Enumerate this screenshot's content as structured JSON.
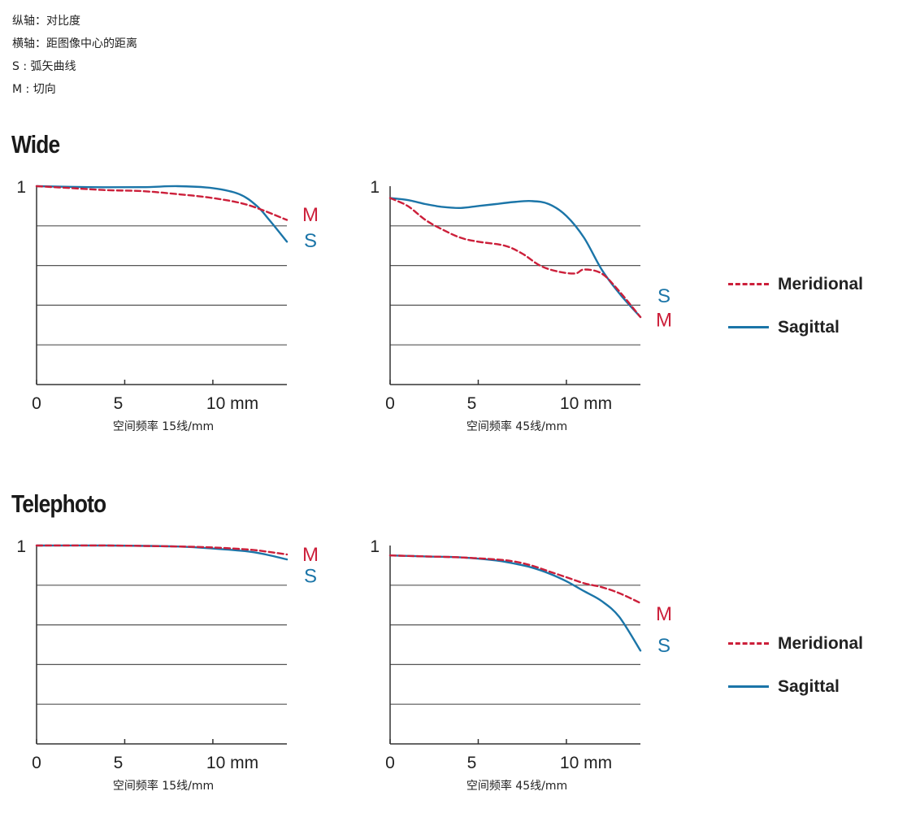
{
  "notes": [
    "纵轴：对比度",
    "横轴：距图像中心的距离",
    "S : 弧矢曲线",
    "M : 切向"
  ],
  "sections": [
    {
      "title": "Wide",
      "charts": [
        {
          "caption": "空间频率 15线/mm",
          "end_labels": [
            {
              "text": "M",
              "color": "#cc1f3a",
              "y": 0.86
            },
            {
              "text": "S",
              "color": "#1b75a8",
              "y": 0.73
            }
          ],
          "series": [
            {
              "key": "M",
              "color": "#cc1f3a",
              "dashed": true,
              "x": [
                0,
                2,
                4,
                6,
                8,
                10,
                12,
                14.2
              ],
              "y": [
                1.0,
                0.99,
                0.98,
                0.975,
                0.96,
                0.94,
                0.905,
                0.83
              ]
            },
            {
              "key": "S",
              "color": "#1b75a8",
              "dashed": false,
              "x": [
                0,
                3,
                6,
                8,
                10,
                11.5,
                12.5,
                13.2,
                14.2
              ],
              "y": [
                1.0,
                0.995,
                0.995,
                1.0,
                0.99,
                0.96,
                0.9,
                0.83,
                0.72
              ]
            }
          ]
        },
        {
          "caption": "空间频率 45线/mm",
          "end_labels": [
            {
              "text": "S",
              "color": "#1b75a8",
              "y": 0.45
            },
            {
              "text": "M",
              "color": "#cc1f3a",
              "y": 0.33
            }
          ],
          "series": [
            {
              "key": "M",
              "color": "#cc1f3a",
              "dashed": true,
              "x": [
                0,
                1,
                2,
                3,
                4,
                5,
                6.5,
                7.5,
                8.5,
                9.5,
                10.5,
                11,
                12,
                13,
                14.2
              ],
              "y": [
                0.94,
                0.9,
                0.83,
                0.78,
                0.74,
                0.72,
                0.7,
                0.66,
                0.6,
                0.57,
                0.56,
                0.58,
                0.56,
                0.47,
                0.34
              ]
            },
            {
              "key": "S",
              "color": "#1b75a8",
              "dashed": false,
              "x": [
                0,
                1,
                2,
                3,
                4,
                5,
                6,
                7,
                8,
                9,
                10,
                11,
                12,
                13,
                14.2
              ],
              "y": [
                0.94,
                0.93,
                0.91,
                0.895,
                0.89,
                0.9,
                0.91,
                0.92,
                0.925,
                0.91,
                0.85,
                0.74,
                0.58,
                0.46,
                0.34
              ]
            }
          ]
        }
      ]
    },
    {
      "title": "Telephoto",
      "charts": [
        {
          "caption": "空间频率 15线/mm",
          "end_labels": [
            {
              "text": "M",
              "color": "#cc1f3a",
              "y": 0.96
            },
            {
              "text": "S",
              "color": "#1b75a8",
              "y": 0.85
            }
          ],
          "series": [
            {
              "key": "M",
              "color": "#cc1f3a",
              "dashed": true,
              "x": [
                0,
                4,
                8,
                10,
                12,
                13,
                14.2
              ],
              "y": [
                1.0,
                1.0,
                0.995,
                0.99,
                0.98,
                0.97,
                0.955
              ]
            },
            {
              "key": "S",
              "color": "#1b75a8",
              "dashed": false,
              "x": [
                0,
                4,
                8,
                10,
                12,
                13,
                14.2
              ],
              "y": [
                1.0,
                1.0,
                0.995,
                0.985,
                0.97,
                0.955,
                0.93
              ]
            }
          ]
        },
        {
          "caption": "空间频率 45线/mm",
          "end_labels": [
            {
              "text": "M",
              "color": "#cc1f3a",
              "y": 0.66
            },
            {
              "text": "S",
              "color": "#1b75a8",
              "y": 0.5
            }
          ],
          "series": [
            {
              "key": "M",
              "color": "#cc1f3a",
              "dashed": true,
              "x": [
                0,
                2,
                4,
                6,
                7,
                8,
                9,
                10,
                11,
                12,
                13,
                14.2
              ],
              "y": [
                0.95,
                0.945,
                0.94,
                0.93,
                0.92,
                0.9,
                0.87,
                0.84,
                0.81,
                0.79,
                0.76,
                0.71
              ]
            },
            {
              "key": "S",
              "color": "#1b75a8",
              "dashed": false,
              "x": [
                0,
                2,
                4,
                6,
                7,
                8,
                9,
                10,
                11,
                12,
                13,
                14.2
              ],
              "y": [
                0.95,
                0.945,
                0.94,
                0.925,
                0.91,
                0.89,
                0.86,
                0.82,
                0.77,
                0.72,
                0.64,
                0.47
              ]
            }
          ]
        }
      ]
    }
  ],
  "chart_common": {
    "type": "line",
    "ylim": [
      0,
      1
    ],
    "xlim": [
      0,
      14.2
    ],
    "x_ticks": [
      {
        "value": 0,
        "label": "0"
      },
      {
        "value": 5,
        "label": "5"
      },
      {
        "value": 10,
        "label": "10 mm"
      }
    ],
    "y_ticks": [
      {
        "value": 1,
        "label": "1"
      }
    ],
    "gridlines_y": [
      0.2,
      0.4,
      0.6,
      0.8
    ]
  },
  "legend": [
    {
      "label": "Meridional",
      "color": "#cc1f3a",
      "dashed": true
    },
    {
      "label": "Sagittal",
      "color": "#1b75a8",
      "dashed": false
    }
  ],
  "chart_data": [
    {
      "type": "line",
      "panel": "Wide 15线/mm",
      "xlim": [
        0,
        14.2
      ],
      "ylim": [
        0,
        1
      ],
      "series": [
        {
          "name": "Meridional",
          "x": [
            0,
            2,
            4,
            6,
            8,
            10,
            12,
            14.2
          ],
          "y": [
            1.0,
            0.99,
            0.98,
            0.975,
            0.96,
            0.94,
            0.905,
            0.83
          ]
        },
        {
          "name": "Sagittal",
          "x": [
            0,
            3,
            6,
            8,
            10,
            11.5,
            12.5,
            13.2,
            14.2
          ],
          "y": [
            1.0,
            0.995,
            0.995,
            1.0,
            0.99,
            0.96,
            0.9,
            0.83,
            0.72
          ]
        }
      ]
    },
    {
      "type": "line",
      "panel": "Wide 45线/mm",
      "xlim": [
        0,
        14.2
      ],
      "ylim": [
        0,
        1
      ],
      "series": [
        {
          "name": "Meridional",
          "x": [
            0,
            1,
            2,
            3,
            4,
            5,
            6.5,
            7.5,
            8.5,
            9.5,
            10.5,
            11,
            12,
            13,
            14.2
          ],
          "y": [
            0.94,
            0.9,
            0.83,
            0.78,
            0.74,
            0.72,
            0.7,
            0.66,
            0.6,
            0.57,
            0.56,
            0.58,
            0.56,
            0.47,
            0.34
          ]
        },
        {
          "name": "Sagittal",
          "x": [
            0,
            1,
            2,
            3,
            4,
            5,
            6,
            7,
            8,
            9,
            10,
            11,
            12,
            13,
            14.2
          ],
          "y": [
            0.94,
            0.93,
            0.91,
            0.895,
            0.89,
            0.9,
            0.91,
            0.92,
            0.925,
            0.91,
            0.85,
            0.74,
            0.58,
            0.46,
            0.34
          ]
        }
      ]
    },
    {
      "type": "line",
      "panel": "Telephoto 15线/mm",
      "xlim": [
        0,
        14.2
      ],
      "ylim": [
        0,
        1
      ],
      "series": [
        {
          "name": "Meridional",
          "x": [
            0,
            4,
            8,
            10,
            12,
            13,
            14.2
          ],
          "y": [
            1.0,
            1.0,
            0.995,
            0.99,
            0.98,
            0.97,
            0.955
          ]
        },
        {
          "name": "Sagittal",
          "x": [
            0,
            4,
            8,
            10,
            12,
            13,
            14.2
          ],
          "y": [
            1.0,
            1.0,
            0.995,
            0.985,
            0.97,
            0.955,
            0.93
          ]
        }
      ]
    },
    {
      "type": "line",
      "panel": "Telephoto 45线/mm",
      "xlim": [
        0,
        14.2
      ],
      "ylim": [
        0,
        1
      ],
      "series": [
        {
          "name": "Meridional",
          "x": [
            0,
            2,
            4,
            6,
            7,
            8,
            9,
            10,
            11,
            12,
            13,
            14.2
          ],
          "y": [
            0.95,
            0.945,
            0.94,
            0.93,
            0.92,
            0.9,
            0.87,
            0.84,
            0.81,
            0.79,
            0.76,
            0.71
          ]
        },
        {
          "name": "Sagittal",
          "x": [
            0,
            2,
            4,
            6,
            7,
            8,
            9,
            10,
            11,
            12,
            13,
            14.2
          ],
          "y": [
            0.95,
            0.945,
            0.94,
            0.925,
            0.91,
            0.89,
            0.86,
            0.82,
            0.77,
            0.72,
            0.64,
            0.47
          ]
        }
      ]
    }
  ]
}
